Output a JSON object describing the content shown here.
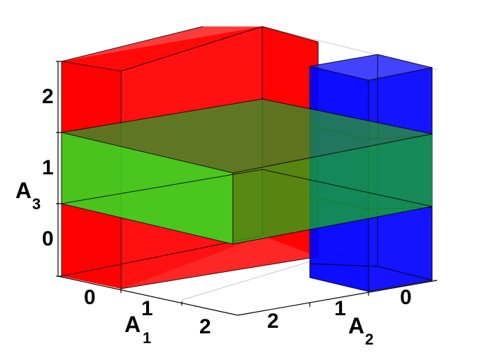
{
  "axes": {
    "a1": {
      "label": "A",
      "sub": "1",
      "ticks": [
        "0",
        "1",
        "2"
      ]
    },
    "a2": {
      "label": "A",
      "sub": "2",
      "ticks": [
        "0",
        "1",
        "2"
      ]
    },
    "a3": {
      "label": "A",
      "sub": "3",
      "ticks": [
        "0",
        "1",
        "2"
      ]
    }
  },
  "colors": {
    "red_box": "#ff0000",
    "blue_box": "#0000ff",
    "green_slab": "#22dd22"
  },
  "legend": []
}
